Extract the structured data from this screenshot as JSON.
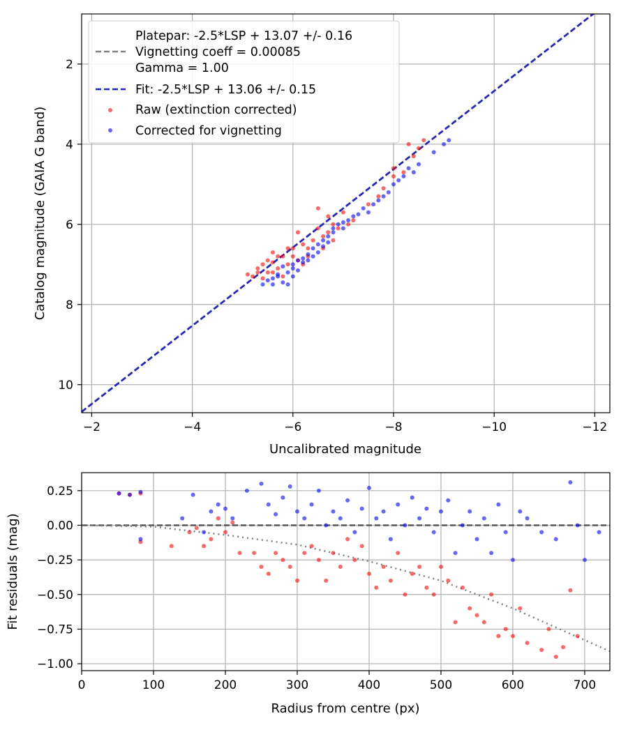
{
  "chart_data": [
    {
      "type": "scatter",
      "title": "",
      "xlabel": "Uncalibrated magnitude",
      "ylabel": "Catalog magnitude (GAIA G band)",
      "x_inverted": true,
      "y_inverted": true,
      "xlim": [
        -1.8,
        -12.3
      ],
      "ylim": [
        10.7,
        0.75
      ],
      "xticks": [
        -2,
        -4,
        -6,
        -8,
        -10,
        -12
      ],
      "xtick_labels": [
        "−2",
        "−4",
        "−6",
        "−8",
        "−10",
        "−12"
      ],
      "yticks": [
        2,
        4,
        6,
        8,
        10
      ],
      "ytick_labels": [
        "2",
        "4",
        "6",
        "8",
        "10"
      ],
      "grid": true,
      "legend_placement": "upper-left",
      "legend": {
        "platepar_lines": [
          "Platepar: -2.5*LSP + 13.07 +/- 0.16",
          "Vignetting coeff = 0.00085",
          "Gamma = 1.00"
        ],
        "fit": "Fit: -2.5*LSP + 13.06 +/- 0.15",
        "raw": "Raw (extinction corrected)",
        "corrected": "Corrected for vignetting"
      },
      "lines": [
        {
          "name": "Platepar",
          "color": "#808080",
          "style": "dashed",
          "x": [
            -1.8,
            -12.3
          ],
          "y": [
            10.67,
            0.42
          ]
        },
        {
          "name": "Fit",
          "color": "#2222cc",
          "style": "dashed",
          "x": [
            -1.8,
            -12.3
          ],
          "y": [
            10.68,
            0.43
          ]
        }
      ],
      "series": [
        {
          "name": "Raw (extinction corrected)",
          "color": "#ff0000",
          "points": [
            [
              -5.1,
              7.25
            ],
            [
              -5.2,
              7.3
            ],
            [
              -5.3,
              7.1
            ],
            [
              -5.4,
              7.0
            ],
            [
              -5.5,
              6.9
            ],
            [
              -5.6,
              6.95
            ],
            [
              -5.7,
              7.1
            ],
            [
              -5.4,
              7.35
            ],
            [
              -5.6,
              7.2
            ],
            [
              -5.8,
              6.8
            ],
            [
              -5.9,
              7.0
            ],
            [
              -6.0,
              6.6
            ],
            [
              -6.0,
              6.8
            ],
            [
              -6.1,
              6.9
            ],
            [
              -6.2,
              6.5
            ],
            [
              -6.3,
              6.6
            ],
            [
              -6.1,
              6.2
            ],
            [
              -6.4,
              6.4
            ],
            [
              -6.5,
              6.1
            ],
            [
              -6.6,
              6.3
            ],
            [
              -6.7,
              6.2
            ],
            [
              -6.8,
              6.0
            ],
            [
              -6.9,
              6.1
            ],
            [
              -6.5,
              5.6
            ],
            [
              -6.7,
              5.8
            ],
            [
              -7.0,
              5.7
            ],
            [
              -7.2,
              5.9
            ],
            [
              -7.5,
              5.5
            ],
            [
              -7.7,
              5.3
            ],
            [
              -7.8,
              5.1
            ],
            [
              -8.0,
              4.8
            ],
            [
              -8.2,
              4.7
            ],
            [
              -8.0,
              4.6
            ],
            [
              -8.4,
              4.3
            ],
            [
              -8.5,
              4.1
            ],
            [
              -8.3,
              4.0
            ],
            [
              -8.6,
              3.9
            ],
            [
              -5.8,
              7.3
            ],
            [
              -5.5,
              7.2
            ],
            [
              -5.3,
              7.2
            ],
            [
              -6.2,
              7.0
            ],
            [
              -6.3,
              6.8
            ],
            [
              -5.9,
              6.6
            ],
            [
              -6.6,
              6.6
            ],
            [
              -6.8,
              6.4
            ],
            [
              -7.1,
              6.0
            ],
            [
              -5.7,
              6.8
            ],
            [
              -5.6,
              6.7
            ]
          ]
        },
        {
          "name": "Corrected for vignetting",
          "color": "#0000ff",
          "points": [
            [
              -5.5,
              7.4
            ],
            [
              -5.6,
              7.5
            ],
            [
              -5.7,
              7.3
            ],
            [
              -5.8,
              7.45
            ],
            [
              -5.9,
              7.2
            ],
            [
              -6.0,
              7.1
            ],
            [
              -6.0,
              7.3
            ],
            [
              -6.1,
              6.9
            ],
            [
              -6.2,
              6.95
            ],
            [
              -6.3,
              6.75
            ],
            [
              -6.4,
              6.6
            ],
            [
              -6.5,
              6.5
            ],
            [
              -6.6,
              6.55
            ],
            [
              -6.7,
              6.3
            ],
            [
              -6.8,
              6.2
            ],
            [
              -6.9,
              6.0
            ],
            [
              -7.0,
              6.1
            ],
            [
              -7.1,
              5.9
            ],
            [
              -7.2,
              5.8
            ],
            [
              -7.3,
              5.75
            ],
            [
              -7.5,
              5.7
            ],
            [
              -7.7,
              5.4
            ],
            [
              -7.9,
              5.2
            ],
            [
              -8.0,
              5.0
            ],
            [
              -8.2,
              4.8
            ],
            [
              -8.3,
              4.6
            ],
            [
              -8.5,
              4.5
            ],
            [
              -8.8,
              4.2
            ],
            [
              -9.0,
              4.0
            ],
            [
              -9.1,
              3.9
            ],
            [
              -5.4,
              7.5
            ],
            [
              -5.6,
              7.35
            ],
            [
              -5.8,
              7.05
            ],
            [
              -6.1,
              7.15
            ],
            [
              -6.3,
              6.9
            ],
            [
              -6.5,
              6.7
            ],
            [
              -6.7,
              6.45
            ],
            [
              -5.7,
              7.25
            ],
            [
              -5.9,
              7.5
            ],
            [
              -6.0,
              7.0
            ],
            [
              -6.2,
              6.85
            ],
            [
              -6.4,
              6.8
            ],
            [
              -6.6,
              6.4
            ],
            [
              -6.8,
              6.1
            ],
            [
              -7.0,
              5.95
            ],
            [
              -7.4,
              5.6
            ],
            [
              -7.6,
              5.5
            ],
            [
              -7.8,
              5.3
            ],
            [
              -8.1,
              4.9
            ],
            [
              -8.4,
              4.7
            ]
          ]
        }
      ]
    },
    {
      "type": "scatter",
      "title": "",
      "xlabel": "Radius from centre (px)",
      "ylabel": "Fit residuals (mag)",
      "xlim": [
        0,
        735
      ],
      "ylim": [
        -1.05,
        0.38
      ],
      "xticks": [
        0,
        100,
        200,
        300,
        400,
        500,
        600,
        700
      ],
      "xtick_labels": [
        "0",
        "100",
        "200",
        "300",
        "400",
        "500",
        "600",
        "700"
      ],
      "yticks": [
        0.25,
        0,
        -0.25,
        -0.5,
        -0.75,
        -1.0
      ],
      "ytick_labels": [
        "0.25",
        "0.00",
        "−0.25",
        "−0.50",
        "−0.75",
        "−1.00"
      ],
      "grid": true,
      "lines": [
        {
          "name": "zero",
          "color": "#555555",
          "style": "dashed",
          "x": [
            0,
            735
          ],
          "y": [
            0,
            0
          ]
        },
        {
          "name": "vignetting model",
          "color": "#808080",
          "style": "dotted",
          "x": [
            0,
            100,
            200,
            300,
            400,
            500,
            600,
            735
          ],
          "y": [
            0,
            -0.01,
            -0.07,
            -0.14,
            -0.26,
            -0.4,
            -0.6,
            -0.91
          ]
        }
      ],
      "series": [
        {
          "name": "Raw (extinction corrected)",
          "color": "#ff0000",
          "points": [
            [
              52,
              0.23
            ],
            [
              67,
              0.22
            ],
            [
              82,
              0.23
            ],
            [
              82,
              -0.12
            ],
            [
              125,
              -0.15
            ],
            [
              150,
              -0.05
            ],
            [
              160,
              -0.02
            ],
            [
              170,
              -0.15
            ],
            [
              180,
              -0.1
            ],
            [
              190,
              0.05
            ],
            [
              200,
              -0.05
            ],
            [
              210,
              0.02
            ],
            [
              220,
              -0.2
            ],
            [
              240,
              -0.2
            ],
            [
              250,
              -0.3
            ],
            [
              260,
              -0.35
            ],
            [
              270,
              -0.2
            ],
            [
              280,
              -0.25
            ],
            [
              290,
              -0.3
            ],
            [
              300,
              -0.4
            ],
            [
              310,
              -0.2
            ],
            [
              320,
              -0.15
            ],
            [
              330,
              -0.25
            ],
            [
              340,
              -0.4
            ],
            [
              350,
              -0.2
            ],
            [
              360,
              -0.3
            ],
            [
              370,
              -0.1
            ],
            [
              380,
              -0.25
            ],
            [
              390,
              -0.15
            ],
            [
              400,
              -0.35
            ],
            [
              410,
              -0.45
            ],
            [
              420,
              -0.3
            ],
            [
              430,
              -0.4
            ],
            [
              440,
              -0.2
            ],
            [
              450,
              -0.5
            ],
            [
              460,
              -0.35
            ],
            [
              470,
              -0.3
            ],
            [
              480,
              -0.45
            ],
            [
              490,
              -0.5
            ],
            [
              500,
              -0.3
            ],
            [
              510,
              -0.4
            ],
            [
              520,
              -0.7
            ],
            [
              530,
              -0.45
            ],
            [
              540,
              -0.6
            ],
            [
              550,
              -0.65
            ],
            [
              560,
              -0.7
            ],
            [
              570,
              -0.5
            ],
            [
              580,
              -0.8
            ],
            [
              590,
              -0.75
            ],
            [
              600,
              -0.8
            ],
            [
              610,
              -0.6
            ],
            [
              620,
              -0.85
            ],
            [
              640,
              -0.9
            ],
            [
              650,
              -0.75
            ],
            [
              660,
              -0.95
            ],
            [
              670,
              -0.88
            ],
            [
              680,
              -0.47
            ],
            [
              690,
              -0.8
            ]
          ]
        },
        {
          "name": "Corrected for vignetting",
          "color": "#0000ff",
          "points": [
            [
              52,
              0.23
            ],
            [
              67,
              0.22
            ],
            [
              82,
              0.24
            ],
            [
              82,
              -0.1
            ],
            [
              140,
              0.05
            ],
            [
              155,
              0.22
            ],
            [
              170,
              -0.05
            ],
            [
              180,
              0.1
            ],
            [
              190,
              0.15
            ],
            [
              200,
              0.12
            ],
            [
              210,
              0.05
            ],
            [
              230,
              0.25
            ],
            [
              250,
              0.3
            ],
            [
              260,
              0.15
            ],
            [
              270,
              0.08
            ],
            [
              280,
              0.2
            ],
            [
              290,
              0.28
            ],
            [
              300,
              0.1
            ],
            [
              310,
              0.05
            ],
            [
              320,
              0.15
            ],
            [
              330,
              0.25
            ],
            [
              340,
              0.0
            ],
            [
              350,
              0.1
            ],
            [
              360,
              0.05
            ],
            [
              370,
              0.18
            ],
            [
              380,
              -0.05
            ],
            [
              390,
              0.12
            ],
            [
              400,
              0.27
            ],
            [
              410,
              0.05
            ],
            [
              420,
              0.1
            ],
            [
              430,
              -0.1
            ],
            [
              440,
              0.15
            ],
            [
              450,
              0.0
            ],
            [
              460,
              0.2
            ],
            [
              470,
              0.05
            ],
            [
              480,
              0.12
            ],
            [
              490,
              -0.05
            ],
            [
              500,
              0.1
            ],
            [
              510,
              0.18
            ],
            [
              520,
              -0.2
            ],
            [
              530,
              0.0
            ],
            [
              540,
              0.1
            ],
            [
              550,
              -0.1
            ],
            [
              560,
              0.05
            ],
            [
              570,
              -0.2
            ],
            [
              580,
              0.15
            ],
            [
              590,
              -0.05
            ],
            [
              600,
              -0.25
            ],
            [
              610,
              0.1
            ],
            [
              620,
              0.05
            ],
            [
              640,
              -0.05
            ],
            [
              660,
              -0.1
            ],
            [
              680,
              0.31
            ],
            [
              690,
              0.0
            ],
            [
              700,
              -0.25
            ],
            [
              720,
              -0.05
            ]
          ]
        }
      ]
    }
  ]
}
